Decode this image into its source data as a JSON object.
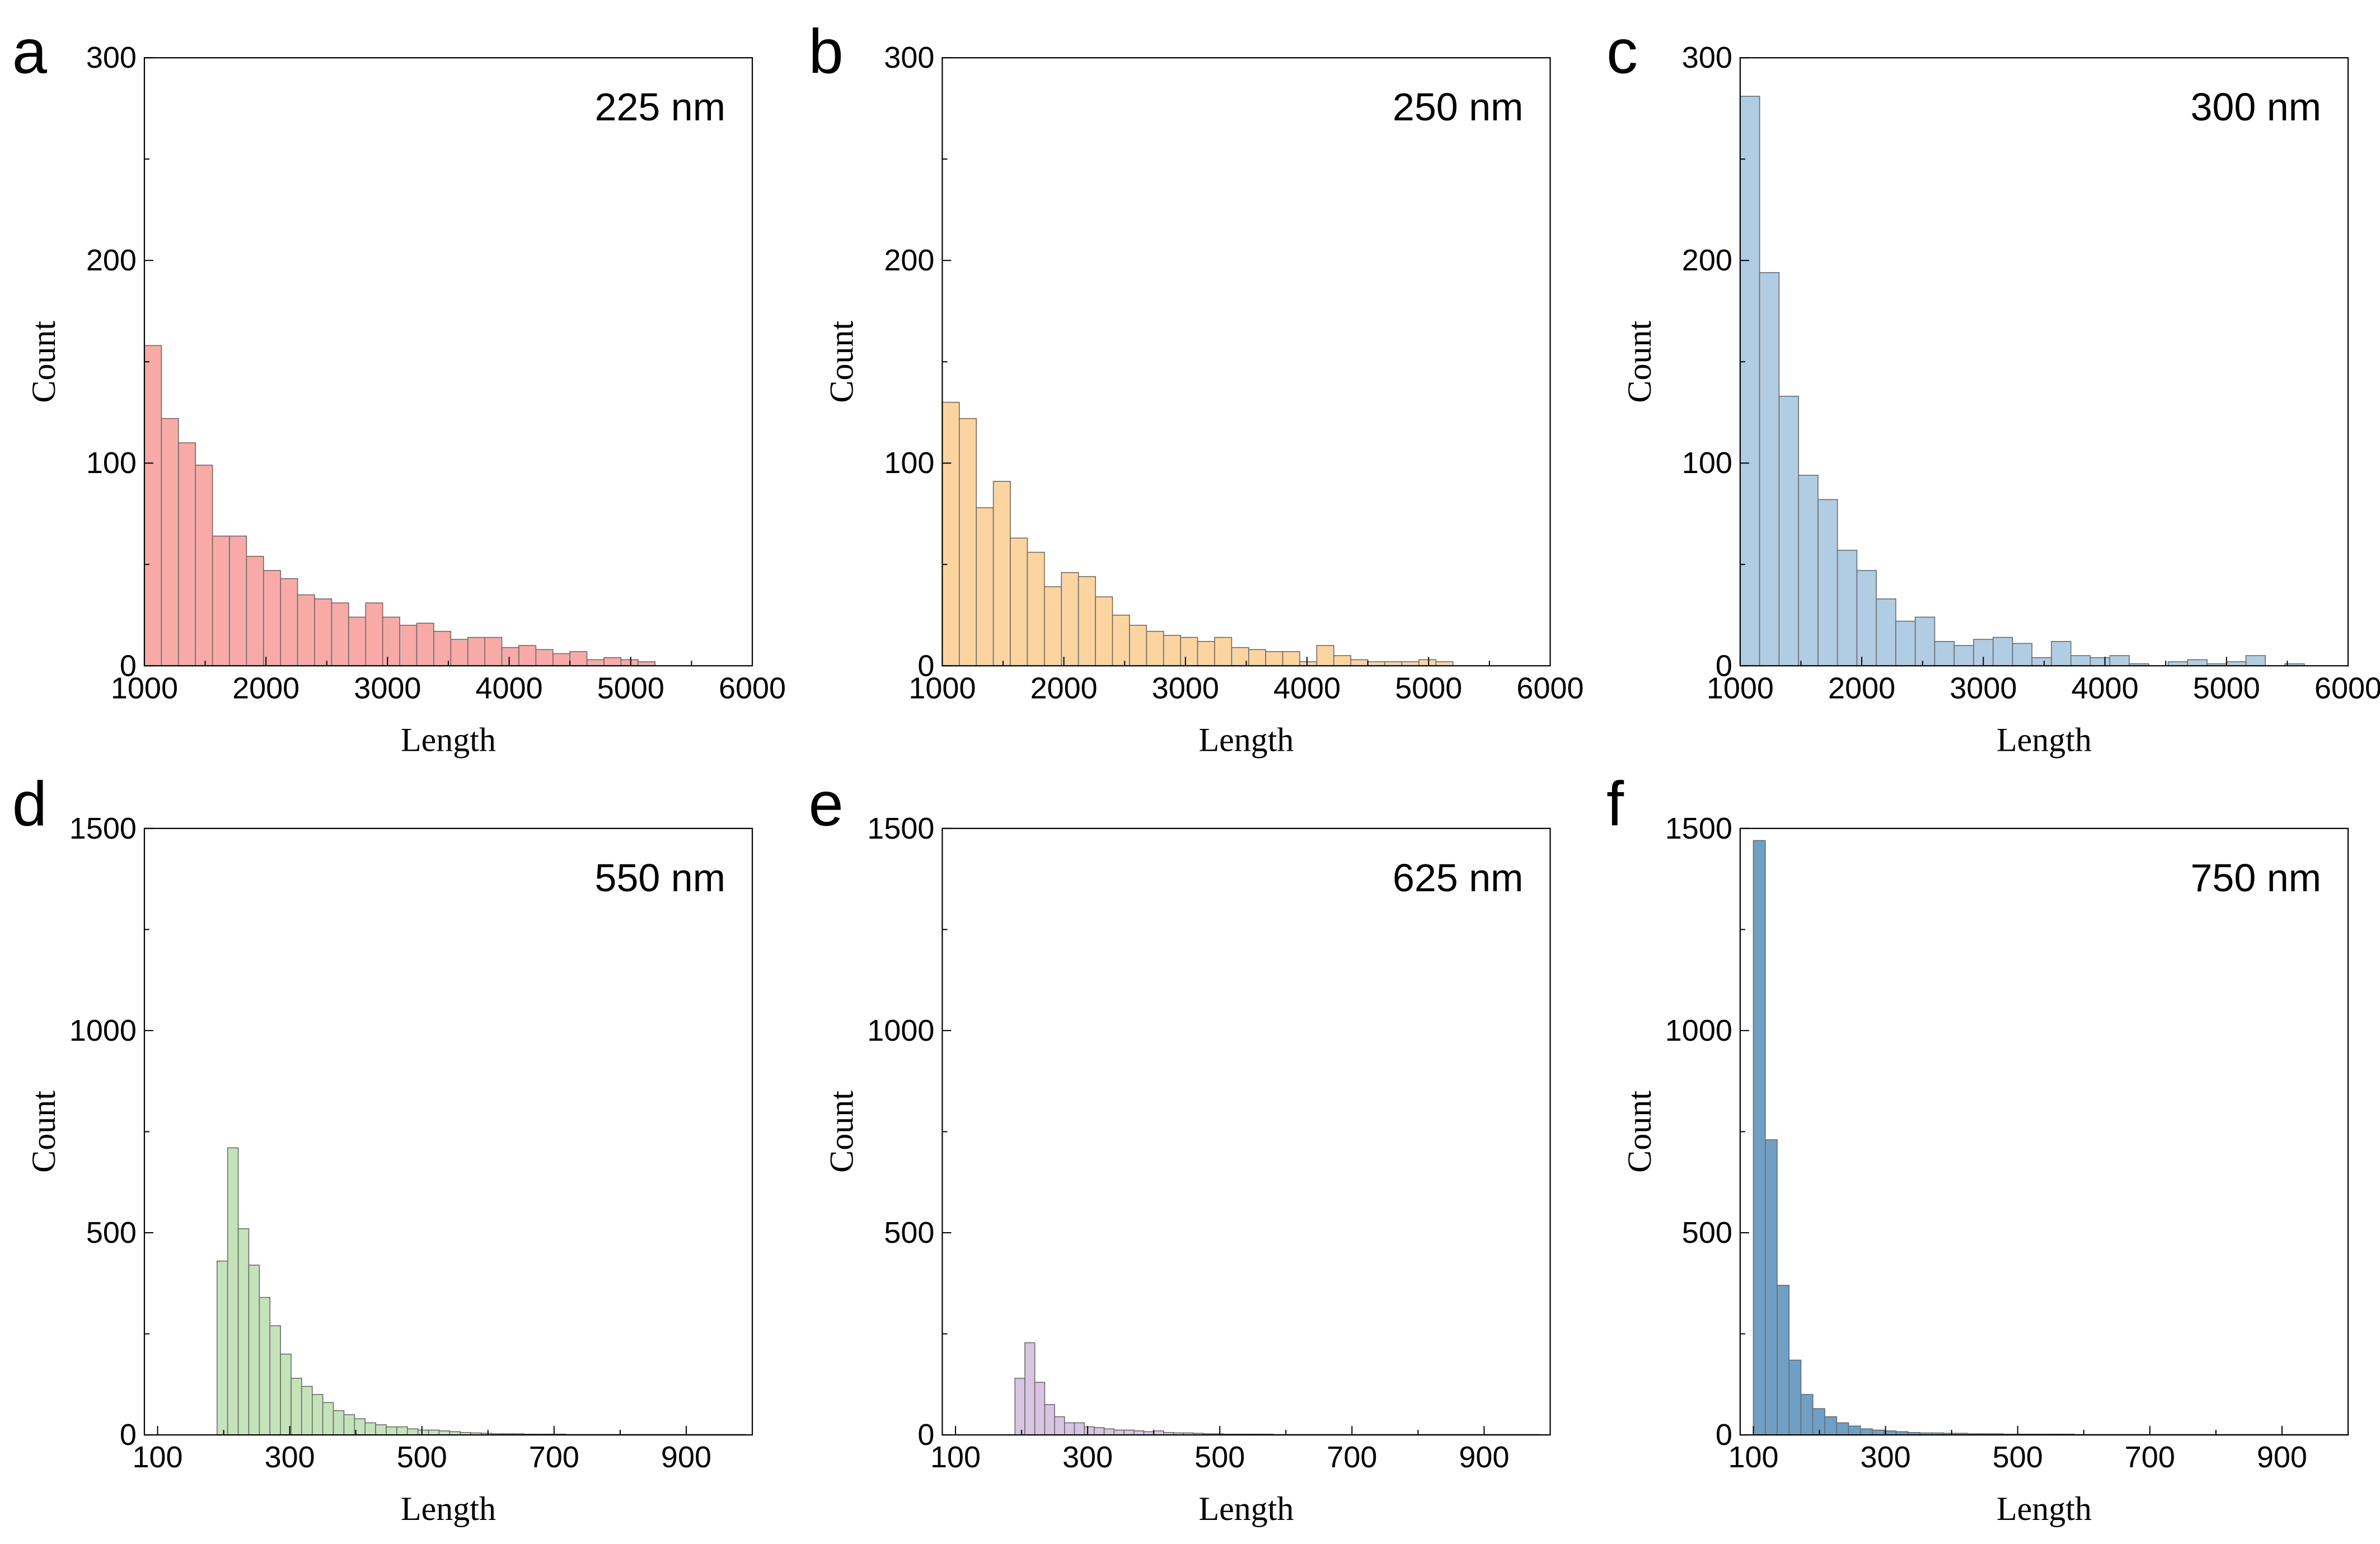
{
  "chart_data": [
    {
      "panel": "a",
      "annotation": "225 nm",
      "type": "bar",
      "color": "#f8aaa6",
      "xlabel": "Length",
      "ylabel": "Count",
      "xlim": [
        1000,
        6000
      ],
      "ylim": [
        0,
        300
      ],
      "xticks": [
        1000,
        2000,
        3000,
        4000,
        5000,
        6000
      ],
      "yticks": [
        0,
        100,
        200,
        300
      ],
      "bin_start": 1000,
      "bin_width": 140,
      "values": [
        158,
        122,
        110,
        99,
        64,
        64,
        54,
        47,
        43,
        35,
        33,
        31,
        24,
        31,
        24,
        20,
        21,
        17,
        13,
        14,
        14,
        9,
        10,
        8,
        6,
        7,
        3,
        4,
        3,
        2
      ]
    },
    {
      "panel": "b",
      "annotation": "250 nm",
      "type": "bar",
      "color": "#fcd49f",
      "xlabel": "Length",
      "ylabel": "Count",
      "xlim": [
        1000,
        6000
      ],
      "ylim": [
        0,
        300
      ],
      "xticks": [
        1000,
        2000,
        3000,
        4000,
        5000,
        6000
      ],
      "yticks": [
        0,
        100,
        200,
        300
      ],
      "bin_start": 1000,
      "bin_width": 140,
      "values": [
        130,
        122,
        78,
        91,
        63,
        56,
        39,
        46,
        44,
        34,
        25,
        20,
        17,
        15,
        14,
        12,
        14,
        9,
        8,
        7,
        7,
        2,
        10,
        5,
        3,
        2,
        2,
        2,
        3,
        2
      ]
    },
    {
      "panel": "c",
      "annotation": "300 nm",
      "type": "bar",
      "color": "#b1cde4",
      "xlabel": "Length",
      "ylabel": "Count",
      "xlim": [
        1000,
        6000
      ],
      "ylim": [
        0,
        300
      ],
      "xticks": [
        1000,
        2000,
        3000,
        4000,
        5000,
        6000
      ],
      "yticks": [
        0,
        100,
        200,
        300
      ],
      "bin_start": 1000,
      "bin_width": 160,
      "values": [
        281,
        194,
        133,
        94,
        82,
        57,
        47,
        33,
        22,
        24,
        12,
        10,
        13,
        14,
        11,
        4,
        12,
        5,
        4,
        5,
        1,
        0,
        2,
        3,
        1,
        2,
        5,
        0,
        1
      ]
    },
    {
      "panel": "d",
      "annotation": "550 nm",
      "type": "bar",
      "color": "#c5e3b9",
      "xlabel": "Length",
      "ylabel": "Count",
      "xlim": [
        80,
        1000
      ],
      "ylim": [
        0,
        1500
      ],
      "xticks": [
        100,
        300,
        500,
        700,
        900
      ],
      "yticks": [
        0,
        500,
        1000,
        1500
      ],
      "bin_start": 190,
      "bin_width": 16,
      "values": [
        430,
        710,
        510,
        420,
        340,
        270,
        200,
        140,
        120,
        100,
        80,
        60,
        50,
        40,
        30,
        25,
        20,
        20,
        15,
        12,
        12,
        10,
        8,
        6,
        5,
        4,
        3,
        3,
        3,
        2,
        2,
        2,
        2,
        1,
        1,
        1,
        1,
        1,
        1,
        1,
        1,
        1,
        1,
        1,
        1,
        1,
        1,
        1,
        1,
        1
      ]
    },
    {
      "panel": "e",
      "annotation": "625 nm",
      "type": "bar",
      "color": "#d8c5e1",
      "xlabel": "Length",
      "ylabel": "Count",
      "xlim": [
        80,
        1000
      ],
      "ylim": [
        0,
        1500
      ],
      "xticks": [
        100,
        300,
        500,
        700,
        900
      ],
      "yticks": [
        0,
        500,
        1000,
        1500
      ],
      "bin_start": 190,
      "bin_width": 15,
      "values": [
        140,
        228,
        130,
        75,
        45,
        30,
        30,
        20,
        18,
        15,
        12,
        12,
        10,
        8,
        10,
        6,
        5,
        5,
        4,
        3,
        3,
        2,
        2,
        2,
        2,
        2,
        1,
        1,
        1,
        1,
        1,
        1,
        1,
        1,
        1,
        1,
        1,
        1,
        1,
        1,
        1,
        1,
        1,
        1,
        1,
        1,
        1,
        1,
        1,
        1,
        1,
        1,
        1
      ]
    },
    {
      "panel": "f",
      "annotation": "750 nm",
      "type": "bar",
      "color": "#6f9fc4",
      "xlabel": "Length",
      "ylabel": "Count",
      "xlim": [
        80,
        1000
      ],
      "ylim": [
        0,
        1500
      ],
      "xticks": [
        100,
        300,
        500,
        700,
        900
      ],
      "yticks": [
        0,
        500,
        1000,
        1500
      ],
      "bin_start": 100,
      "bin_width": 18,
      "values": [
        1470,
        730,
        370,
        185,
        100,
        65,
        45,
        30,
        22,
        15,
        12,
        10,
        8,
        6,
        5,
        5,
        4,
        4,
        3,
        3,
        3,
        2,
        2,
        2,
        2,
        2,
        2,
        1,
        1,
        1,
        1,
        1,
        1,
        1,
        1,
        1,
        1,
        1,
        1,
        1,
        1,
        1,
        1,
        1,
        1,
        1,
        1,
        1,
        1,
        1
      ]
    }
  ]
}
